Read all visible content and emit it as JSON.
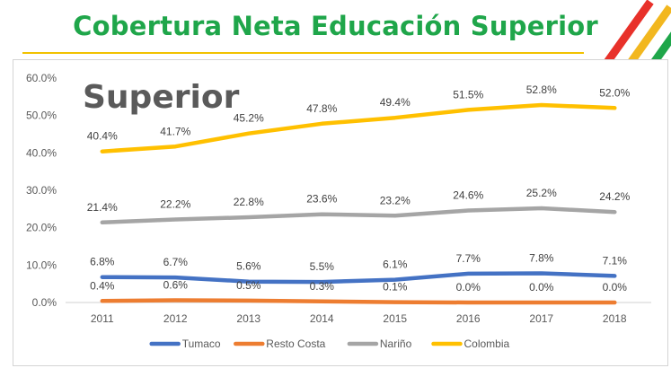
{
  "slide": {
    "title": "Cobertura Neta Educación Superior",
    "overlay_label": "Superior",
    "colors": {
      "title": "#1fa64a",
      "rule": "#f2c200",
      "stripe_red": "#e8312a",
      "stripe_yellow": "#f2b71f",
      "stripe_green": "#1fa64a"
    }
  },
  "chart_data": {
    "type": "line",
    "title": "",
    "xlabel": "",
    "ylabel": "",
    "x": [
      "2011",
      "2012",
      "2013",
      "2014",
      "2015",
      "2016",
      "2017",
      "2018"
    ],
    "ylim": [
      0,
      60
    ],
    "y_ticks": [
      "0.0%",
      "10.0%",
      "20.0%",
      "30.0%",
      "40.0%",
      "50.0%",
      "60.0%"
    ],
    "grid": false,
    "legend_position": "bottom",
    "series": [
      {
        "name": "Tumaco",
        "color": "#4472c4",
        "values": [
          6.8,
          6.7,
          5.6,
          5.5,
          6.1,
          7.7,
          7.8,
          7.1
        ],
        "labels": [
          "6.8%",
          "6.7%",
          "5.6%",
          "5.5%",
          "6.1%",
          "7.7%",
          "7.8%",
          "7.1%"
        ]
      },
      {
        "name": "Resto Costa",
        "color": "#ed7d31",
        "values": [
          0.4,
          0.6,
          0.5,
          0.3,
          0.1,
          0.0,
          0.0,
          0.0
        ],
        "labels": [
          "0.4%",
          "0.6%",
          "0.5%",
          "0.3%",
          "0.1%",
          "0.0%",
          "0.0%",
          "0.0%"
        ]
      },
      {
        "name": "Nariño",
        "color": "#a5a5a5",
        "values": [
          21.4,
          22.2,
          22.8,
          23.6,
          23.2,
          24.6,
          25.2,
          24.2
        ],
        "labels": [
          "21.4%",
          "22.2%",
          "22.8%",
          "23.6%",
          "23.2%",
          "24.6%",
          "25.2%",
          "24.2%"
        ]
      },
      {
        "name": "Colombia",
        "color": "#ffc000",
        "values": [
          40.4,
          41.7,
          45.2,
          47.8,
          49.4,
          51.5,
          52.8,
          52.0
        ],
        "labels": [
          "40.4%",
          "41.7%",
          "45.2%",
          "47.8%",
          "49.4%",
          "51.5%",
          "52.8%",
          "52.0%"
        ]
      }
    ]
  }
}
